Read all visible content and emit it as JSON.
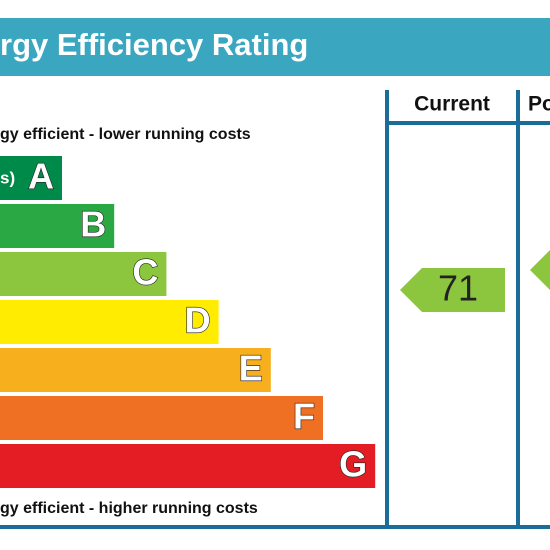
{
  "header": {
    "title": "rgy Efficiency Rating"
  },
  "columns": [
    "Current",
    "Po"
  ],
  "top_note": "gy efficient - lower running costs",
  "bottom_note": "gy efficient - higher running costs",
  "bands": [
    {
      "range": "s)",
      "letter": "A"
    },
    {
      "letter": "B"
    },
    {
      "letter": "C"
    },
    {
      "letter": "D"
    },
    {
      "letter": "E"
    },
    {
      "letter": "F"
    },
    {
      "letter": "G"
    }
  ],
  "current": {
    "label": "71"
  }
}
